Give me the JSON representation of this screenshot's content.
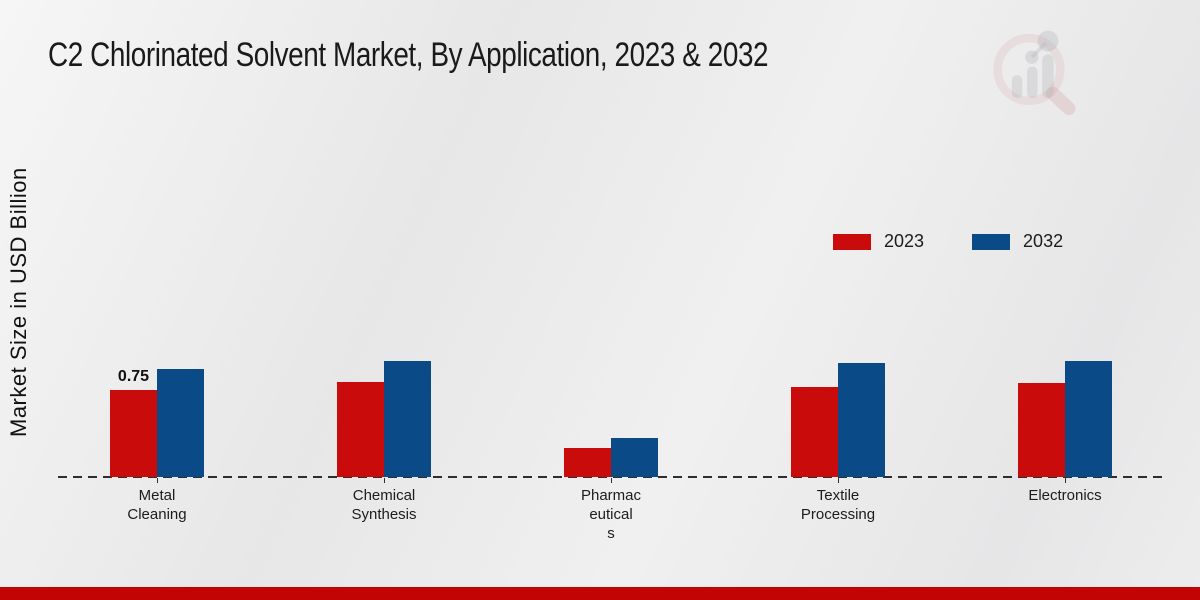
{
  "page": {
    "title": "C2 Chlorinated Solvent Market, By Application, 2023 & 2032",
    "ylabel": "Market Size in USD Billion"
  },
  "colors": {
    "series_2023": "#c90b0b",
    "series_2032": "#0a4b87",
    "bottom_strip": "#c10505",
    "axis": "#2e2e2e"
  },
  "legend": [
    {
      "label": "2023",
      "color": "#c90b0b"
    },
    {
      "label": "2032",
      "color": "#0a4b87"
    }
  ],
  "watermark": {
    "name": "market-research-future-logo"
  },
  "chart_data": {
    "type": "bar",
    "title": "C2 Chlorinated Solvent Market, By Application, 2023 & 2032",
    "xlabel": "",
    "ylabel": "Market Size in USD Billion",
    "categories": [
      "Metal Cleaning",
      "Chemical Synthesis",
      "Pharmaceuticals",
      "Textile Processing",
      "Electronics"
    ],
    "category_label_lines": [
      [
        "Metal",
        "Cleaning"
      ],
      [
        "Chemical",
        "Synthesis"
      ],
      [
        "Pharmac",
        "eutical",
        "s"
      ],
      [
        "Textile",
        "Processing"
      ],
      [
        "Electronics"
      ]
    ],
    "series": [
      {
        "name": "2023",
        "color": "#c90b0b",
        "values": [
          0.75,
          0.82,
          0.25,
          0.78,
          0.81
        ]
      },
      {
        "name": "2032",
        "color": "#0a4b87",
        "values": [
          0.93,
          1.0,
          0.34,
          0.98,
          1.0
        ]
      }
    ],
    "data_labels": [
      {
        "series_index": 0,
        "category_index": 0,
        "text": "0.75"
      }
    ],
    "ylim": [
      0,
      1.15
    ],
    "grid": false,
    "y_axis_ticks_visible": false,
    "baseline_style": "dashed",
    "legend_position": "upper-right"
  }
}
